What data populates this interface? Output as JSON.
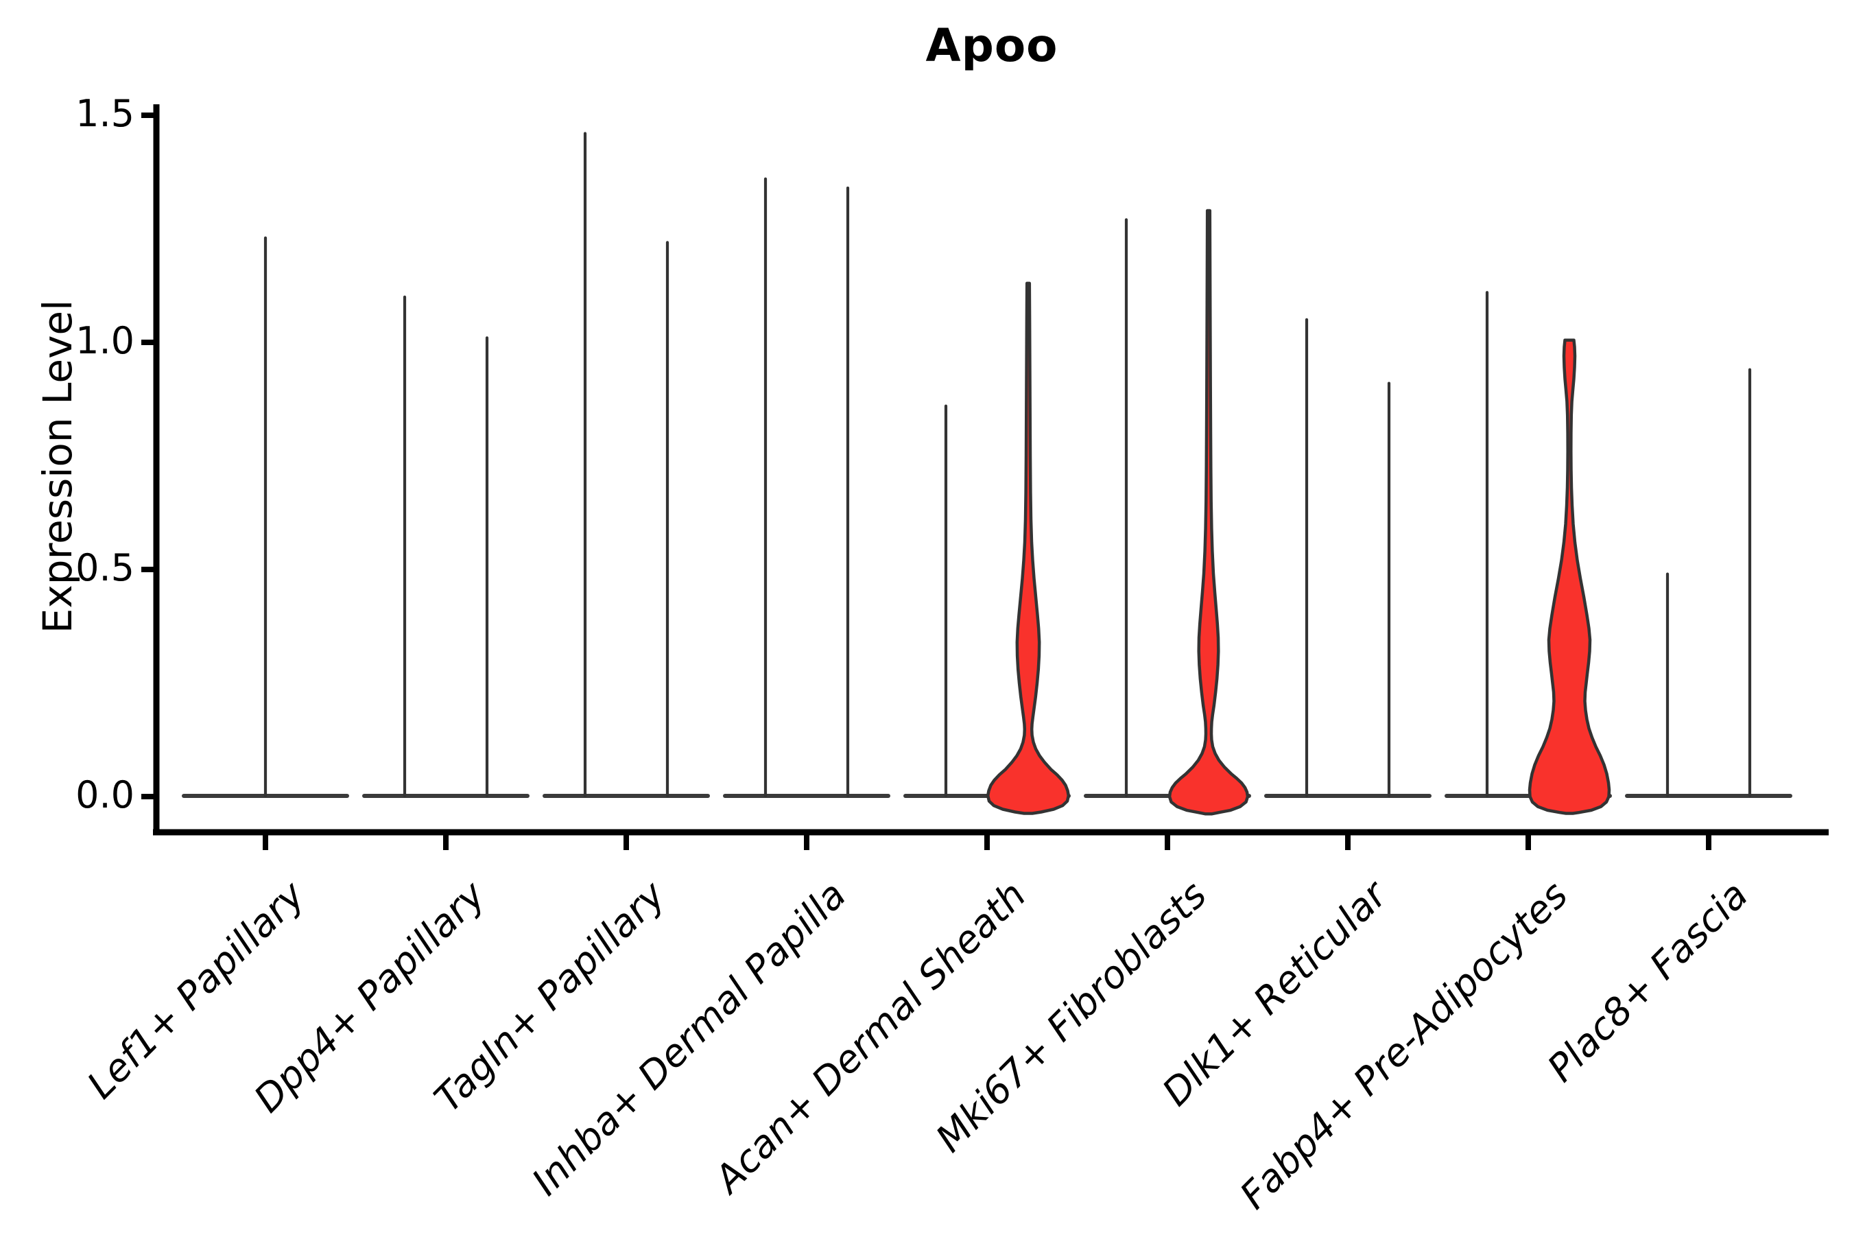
{
  "title": "Apoo",
  "ylabel": "Expression Level",
  "colors": {
    "violin_fill": "#F9322C",
    "violin_stroke": "#333333",
    "axis": "#000000",
    "baseline": "#3a3a3a",
    "text": "#000000"
  },
  "chart_data": {
    "type": "violin",
    "title": "Apoo",
    "xlabel": "",
    "ylabel": "Expression Level",
    "ylim": [
      0,
      1.5
    ],
    "yticks": [
      0.0,
      0.5,
      1.0,
      1.5
    ],
    "grid": false,
    "legend": "none",
    "categories": [
      "Lef1+ Papillary",
      "Dpp4+ Papillary",
      "Tagln+ Papillary",
      "Inhba+ Dermal Papilla",
      "Acan+ Dermal Sheath",
      "Mki67+ Fibroblasts",
      "Dlk1+ Reticular",
      "Fabp4+ Pre-Adipocytes",
      "Plac8+ Fascia"
    ],
    "series": [
      {
        "category": "Lef1+ Papillary",
        "violins": [
          {
            "pos": "center",
            "max": 1.23,
            "filled": false
          }
        ]
      },
      {
        "category": "Dpp4+ Papillary",
        "violins": [
          {
            "pos": "left",
            "max": 1.1,
            "filled": false
          },
          {
            "pos": "right",
            "max": 1.01,
            "filled": false
          }
        ]
      },
      {
        "category": "Tagln+ Papillary",
        "violins": [
          {
            "pos": "left",
            "max": 1.46,
            "filled": false
          },
          {
            "pos": "right",
            "max": 1.22,
            "filled": false
          }
        ]
      },
      {
        "category": "Inhba+ Dermal Papilla",
        "violins": [
          {
            "pos": "left",
            "max": 1.36,
            "filled": false
          },
          {
            "pos": "right",
            "max": 1.34,
            "filled": false
          }
        ]
      },
      {
        "category": "Acan+ Dermal Sheath",
        "violins": [
          {
            "pos": "left",
            "max": 0.86,
            "filled": false
          },
          {
            "pos": "right",
            "max": 1.13,
            "filled": true,
            "profile": [
              [
                1.13,
                1.8
              ],
              [
                1.05,
                2.1
              ],
              [
                0.95,
                2.4
              ],
              [
                0.85,
                2.7
              ],
              [
                0.75,
                3.0
              ],
              [
                0.67,
                3.4
              ],
              [
                0.61,
                4.0
              ],
              [
                0.56,
                5.0
              ],
              [
                0.52,
                6.5
              ],
              [
                0.48,
                8.5
              ],
              [
                0.44,
                11.0
              ],
              [
                0.4,
                13.5
              ],
              [
                0.37,
                15.2
              ],
              [
                0.34,
                16.2
              ],
              [
                0.31,
                15.9
              ],
              [
                0.28,
                14.8
              ],
              [
                0.25,
                13.0
              ],
              [
                0.22,
                10.8
              ],
              [
                0.195,
                8.6
              ],
              [
                0.175,
                6.8
              ],
              [
                0.16,
                5.6
              ],
              [
                0.148,
                5.2
              ],
              [
                0.135,
                5.6
              ],
              [
                0.12,
                7.5
              ],
              [
                0.105,
                11.0
              ],
              [
                0.09,
                16.5
              ],
              [
                0.075,
                24.0
              ],
              [
                0.06,
                33.0
              ],
              [
                0.048,
                42.0
              ],
              [
                0.036,
                49.5
              ],
              [
                0.025,
                54.5
              ],
              [
                0.013,
                57.5
              ],
              [
                0.002,
                58.8
              ],
              [
                -0.01,
                57.0
              ],
              [
                -0.02,
                50.0
              ],
              [
                -0.028,
                37.0
              ],
              [
                -0.034,
                19.0
              ],
              [
                -0.037,
                6.0
              ]
            ]
          }
        ]
      },
      {
        "category": "Mki67+ Fibroblasts",
        "violins": [
          {
            "pos": "left",
            "max": 1.27,
            "filled": false
          },
          {
            "pos": "right",
            "max": 1.29,
            "filled": true,
            "profile": [
              [
                1.29,
                1.8
              ],
              [
                1.15,
                2.1
              ],
              [
                1.02,
                2.4
              ],
              [
                0.9,
                2.7
              ],
              [
                0.8,
                3.0
              ],
              [
                0.72,
                3.3
              ],
              [
                0.65,
                3.7
              ],
              [
                0.59,
                4.4
              ],
              [
                0.54,
                5.4
              ],
              [
                0.49,
                7.0
              ],
              [
                0.45,
                9.0
              ],
              [
                0.41,
                11.2
              ],
              [
                0.38,
                12.8
              ],
              [
                0.35,
                14.0
              ],
              [
                0.32,
                14.3
              ],
              [
                0.29,
                13.6
              ],
              [
                0.26,
                12.2
              ],
              [
                0.23,
                10.2
              ],
              [
                0.2,
                7.8
              ],
              [
                0.18,
                5.8
              ],
              [
                0.165,
                4.6
              ],
              [
                0.15,
                4.1
              ],
              [
                0.138,
                4.0
              ],
              [
                0.125,
                4.4
              ],
              [
                0.11,
                6.0
              ],
              [
                0.095,
                9.5
              ],
              [
                0.08,
                15.0
              ],
              [
                0.065,
                23.0
              ],
              [
                0.05,
                33.0
              ],
              [
                0.04,
                41.0
              ],
              [
                0.03,
                48.0
              ],
              [
                0.02,
                53.0
              ],
              [
                0.01,
                56.0
              ],
              [
                0.0,
                57.0
              ],
              [
                -0.012,
                54.5
              ],
              [
                -0.022,
                46.0
              ],
              [
                -0.03,
                32.0
              ],
              [
                -0.035,
                15.0
              ],
              [
                -0.038,
                5.0
              ]
            ]
          }
        ]
      },
      {
        "category": "Dlk1+ Reticular",
        "violins": [
          {
            "pos": "left",
            "max": 1.05,
            "filled": false
          },
          {
            "pos": "right",
            "max": 0.91,
            "filled": false
          }
        ]
      },
      {
        "category": "Fabp4+ Pre-Adipocytes",
        "violins": [
          {
            "pos": "left",
            "max": 1.11,
            "filled": false
          },
          {
            "pos": "right",
            "max": 1.0,
            "filled": true,
            "flat_top": true,
            "profile": [
              [
                1.005,
                6.5
              ],
              [
                0.99,
                7.5
              ],
              [
                0.97,
                8.0
              ],
              [
                0.945,
                7.5
              ],
              [
                0.92,
                6.5
              ],
              [
                0.895,
                5.0
              ],
              [
                0.87,
                3.6
              ],
              [
                0.84,
                2.8
              ],
              [
                0.8,
                2.4
              ],
              [
                0.76,
                2.3
              ],
              [
                0.72,
                2.5
              ],
              [
                0.68,
                3.0
              ],
              [
                0.64,
                4.0
              ],
              [
                0.6,
                5.5
              ],
              [
                0.56,
                8.0
              ],
              [
                0.52,
                11.5
              ],
              [
                0.48,
                16.0
              ],
              [
                0.44,
                21.0
              ],
              [
                0.4,
                25.5
              ],
              [
                0.37,
                28.5
              ],
              [
                0.345,
                30.0
              ],
              [
                0.32,
                29.5
              ],
              [
                0.295,
                28.0
              ],
              [
                0.27,
                26.0
              ],
              [
                0.25,
                24.5
              ],
              [
                0.23,
                23.0
              ],
              [
                0.21,
                22.5
              ],
              [
                0.19,
                23.5
              ],
              [
                0.17,
                25.5
              ],
              [
                0.15,
                28.5
              ],
              [
                0.13,
                33.0
              ],
              [
                0.11,
                38.5
              ],
              [
                0.09,
                45.0
              ],
              [
                0.07,
                50.5
              ],
              [
                0.05,
                54.5
              ],
              [
                0.03,
                57.0
              ],
              [
                0.015,
                58.0
              ],
              [
                0.0,
                57.5
              ],
              [
                -0.012,
                54.0
              ],
              [
                -0.022,
                46.0
              ],
              [
                -0.03,
                32.0
              ],
              [
                -0.035,
                14.0
              ],
              [
                -0.037,
                5.0
              ]
            ]
          }
        ]
      },
      {
        "category": "Plac8+ Fascia",
        "violins": [
          {
            "pos": "left",
            "max": 0.49,
            "filled": false
          },
          {
            "pos": "right",
            "max": 0.94,
            "filled": false
          }
        ]
      }
    ]
  }
}
